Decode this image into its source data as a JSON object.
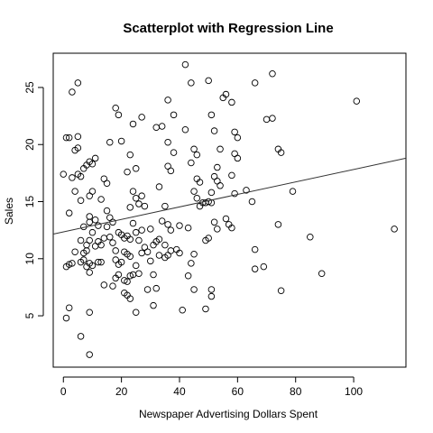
{
  "chart_data": {
    "type": "scatter",
    "title": "Scatterplot with Regression Line",
    "xlabel": "Newspaper Advertising Dollars Spent",
    "ylabel": "Sales",
    "xlim": [
      -3.5,
      118
    ],
    "ylim": [
      0.5,
      28
    ],
    "xticks": [
      0,
      20,
      40,
      60,
      80,
      100
    ],
    "yticks": [
      5,
      10,
      15,
      20,
      25
    ],
    "grid": false,
    "regression": {
      "intercept": 12.35,
      "slope": 0.0547,
      "x_range": [
        -3.5,
        118
      ]
    },
    "points": [
      [
        1,
        20.6
      ],
      [
        2,
        20.6
      ],
      [
        3,
        24.6
      ],
      [
        5,
        25.4
      ],
      [
        5,
        19.7
      ],
      [
        4,
        19.5
      ],
      [
        6,
        17.2
      ],
      [
        5,
        20.7
      ],
      [
        7,
        17.9
      ],
      [
        8,
        18.2
      ],
      [
        9,
        18.5
      ],
      [
        10,
        18.3
      ],
      [
        11,
        18.8
      ],
      [
        0,
        17.4
      ],
      [
        3,
        17.1
      ],
      [
        5,
        17.4
      ],
      [
        2,
        14.0
      ],
      [
        4,
        15.9
      ],
      [
        6,
        15.1
      ],
      [
        9,
        15.5
      ],
      [
        10,
        15.9
      ],
      [
        7,
        12.8
      ],
      [
        9,
        13.7
      ],
      [
        9,
        13.2
      ],
      [
        11,
        13.4
      ],
      [
        10,
        12.3
      ],
      [
        12,
        12.9
      ],
      [
        4,
        10.6
      ],
      [
        6,
        11.6
      ],
      [
        7,
        10.5
      ],
      [
        8,
        10.7
      ],
      [
        9,
        9.6
      ],
      [
        10,
        9.4
      ],
      [
        8,
        11.2
      ],
      [
        9,
        11.6
      ],
      [
        11,
        11.1
      ],
      [
        12,
        11.5
      ],
      [
        13,
        11.2
      ],
      [
        14,
        11.8
      ],
      [
        1,
        9.3
      ],
      [
        2,
        9.5
      ],
      [
        3,
        9.6
      ],
      [
        6,
        9.7
      ],
      [
        7,
        9.9
      ],
      [
        8,
        9.3
      ],
      [
        9,
        8.8
      ],
      [
        12,
        9.7
      ],
      [
        13,
        9.7
      ],
      [
        1,
        4.8
      ],
      [
        2,
        5.7
      ],
      [
        6,
        3.2
      ],
      [
        9,
        5.3
      ],
      [
        9,
        1.6
      ],
      [
        14,
        17.0
      ],
      [
        15,
        16.6
      ],
      [
        16,
        20.2
      ],
      [
        13,
        15.2
      ],
      [
        15,
        14.2
      ],
      [
        16,
        13.6
      ],
      [
        17,
        13.2
      ],
      [
        15,
        12.8
      ],
      [
        16,
        11.9
      ],
      [
        17,
        11.4
      ],
      [
        18,
        10.7
      ],
      [
        19,
        12.3
      ],
      [
        20,
        12.1
      ],
      [
        21,
        11.8
      ],
      [
        22,
        12.0
      ],
      [
        23,
        11.7
      ],
      [
        18,
        9.9
      ],
      [
        19,
        9.5
      ],
      [
        20,
        9.7
      ],
      [
        21,
        10.6
      ],
      [
        22,
        10.4
      ],
      [
        23,
        10.2
      ],
      [
        14,
        7.7
      ],
      [
        17,
        7.6
      ],
      [
        18,
        8.3
      ],
      [
        19,
        8.6
      ],
      [
        21,
        8.1
      ],
      [
        22,
        8.0
      ],
      [
        23,
        8.5
      ],
      [
        24,
        8.6
      ],
      [
        25,
        9.4
      ],
      [
        26,
        8.7
      ],
      [
        21,
        7.0
      ],
      [
        22,
        6.8
      ],
      [
        23,
        6.5
      ],
      [
        25,
        5.3
      ],
      [
        18,
        23.2
      ],
      [
        19,
        22.6
      ],
      [
        20,
        20.3
      ],
      [
        24,
        21.8
      ],
      [
        27,
        22.4
      ],
      [
        23,
        19.1
      ],
      [
        25,
        17.9
      ],
      [
        22,
        17.6
      ],
      [
        24,
        15.9
      ],
      [
        25,
        15.3
      ],
      [
        27,
        15.5
      ],
      [
        23,
        14.5
      ],
      [
        26,
        14.8
      ],
      [
        28,
        14.6
      ],
      [
        24,
        13.1
      ],
      [
        25,
        12.3
      ],
      [
        27,
        12.5
      ],
      [
        26,
        11.6
      ],
      [
        28,
        11.0
      ],
      [
        27,
        10.5
      ],
      [
        29,
        10.6
      ],
      [
        30,
        12.6
      ],
      [
        31,
        11.2
      ],
      [
        32,
        11.5
      ],
      [
        30,
        9.8
      ],
      [
        31,
        8.6
      ],
      [
        33,
        10.3
      ],
      [
        29,
        7.3
      ],
      [
        32,
        7.4
      ],
      [
        31,
        5.9
      ],
      [
        32,
        21.5
      ],
      [
        34,
        21.6
      ],
      [
        36,
        23.9
      ],
      [
        38,
        22.6
      ],
      [
        36,
        20.2
      ],
      [
        38,
        19.3
      ],
      [
        36,
        18.1
      ],
      [
        37,
        17.7
      ],
      [
        33,
        16.3
      ],
      [
        35,
        14.6
      ],
      [
        34,
        13.3
      ],
      [
        36,
        13.0
      ],
      [
        37,
        12.5
      ],
      [
        33,
        11.7
      ],
      [
        35,
        11.2
      ],
      [
        36,
        10.3
      ],
      [
        37,
        10.7
      ],
      [
        35,
        10.1
      ],
      [
        39,
        10.8
      ],
      [
        40,
        10.5
      ],
      [
        42,
        27.0
      ],
      [
        44,
        25.4
      ],
      [
        45,
        19.6
      ],
      [
        46,
        19.1
      ],
      [
        44,
        18.4
      ],
      [
        46,
        17.0
      ],
      [
        47,
        16.7
      ],
      [
        45,
        15.9
      ],
      [
        46,
        15.3
      ],
      [
        48,
        14.9
      ],
      [
        47,
        14.6
      ],
      [
        49,
        14.9
      ],
      [
        42,
        21.3
      ],
      [
        40,
        12.9
      ],
      [
        43,
        12.7
      ],
      [
        44,
        9.6
      ],
      [
        45,
        10.4
      ],
      [
        43,
        8.5
      ],
      [
        45,
        7.3
      ],
      [
        41,
        5.5
      ],
      [
        50,
        25.6
      ],
      [
        51,
        22.6
      ],
      [
        52,
        21.2
      ],
      [
        53,
        18.0
      ],
      [
        55,
        24.1
      ],
      [
        56,
        24.4
      ],
      [
        54,
        19.6
      ],
      [
        52,
        17.2
      ],
      [
        53,
        16.8
      ],
      [
        54,
        16.4
      ],
      [
        51,
        15.8
      ],
      [
        50,
        15.0
      ],
      [
        51,
        14.9
      ],
      [
        52,
        13.2
      ],
      [
        53,
        12.6
      ],
      [
        49,
        11.6
      ],
      [
        50,
        11.8
      ],
      [
        51,
        7.3
      ],
      [
        51,
        6.7
      ],
      [
        49,
        5.6
      ],
      [
        58,
        23.7
      ],
      [
        59,
        21.1
      ],
      [
        60,
        20.6
      ],
      [
        59,
        19.2
      ],
      [
        60,
        18.8
      ],
      [
        58,
        17.3
      ],
      [
        59,
        15.7
      ],
      [
        57,
        13.0
      ],
      [
        58,
        12.7
      ],
      [
        56,
        13.5
      ],
      [
        63,
        16.0
      ],
      [
        65,
        15.0
      ],
      [
        66,
        25.4
      ],
      [
        66,
        10.8
      ],
      [
        66,
        9.1
      ],
      [
        69,
        9.3
      ],
      [
        70,
        22.2
      ],
      [
        72,
        26.2
      ],
      [
        72,
        22.3
      ],
      [
        74,
        19.6
      ],
      [
        75,
        19.3
      ],
      [
        74,
        13.0
      ],
      [
        75,
        7.2
      ],
      [
        79,
        15.9
      ],
      [
        85,
        11.9
      ],
      [
        89,
        8.7
      ],
      [
        101,
        23.8
      ],
      [
        114,
        12.6
      ]
    ]
  }
}
